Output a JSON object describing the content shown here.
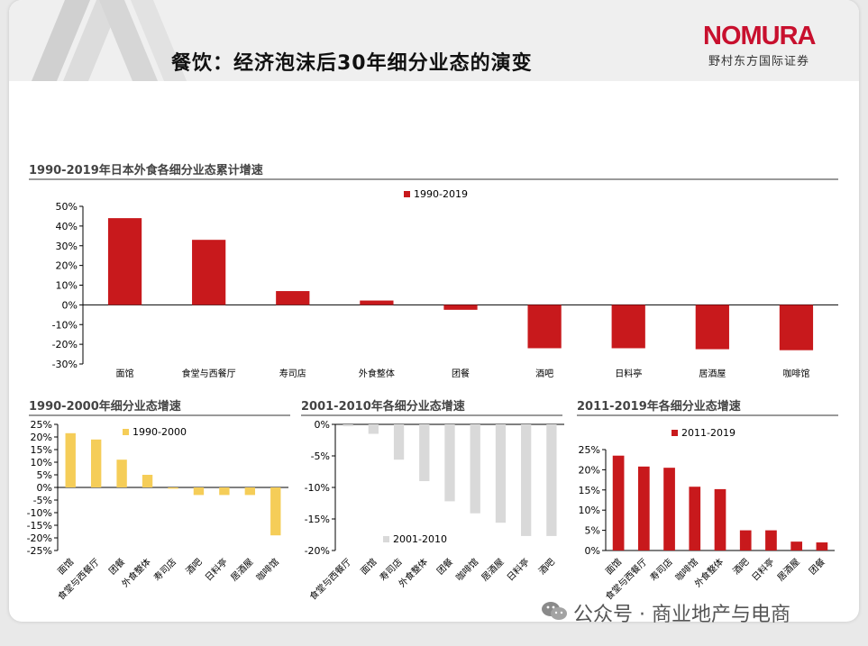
{
  "header": {
    "title": "餐饮：经济泡沫后30年细分业态的演变",
    "brand": "NOMURA",
    "brand_sub": "野村东方国际证券"
  },
  "colors": {
    "red": "#c8191c",
    "yellow": "#f5cd58",
    "grey": "#d9d9d9",
    "brand_red": "#c8102e"
  },
  "sections": {
    "top": "1990-2019年日本外食各细分业态累计增速",
    "bl": "1990-2000年细分业态增速",
    "bc": "2001-2010年各细分业态增速",
    "br": "2011-2019年各细分业态增速"
  },
  "watermark": "公众号 · 商业地产与电商",
  "chart_data": [
    {
      "type": "bar",
      "categories": [
        "面馆",
        "食堂与西餐厅",
        "寿司店",
        "外食整体",
        "团餐",
        "酒吧",
        "日料亭",
        "居酒屋",
        "咖啡馆"
      ],
      "series": [
        {
          "name": "1990-2019",
          "values": [
            44,
            33,
            7,
            2.2,
            -2.5,
            -22,
            -22,
            -22.5,
            -23
          ]
        }
      ],
      "ylim": [
        -30,
        50
      ],
      "yticks": [
        "50%",
        "40%",
        "30%",
        "20%",
        "10%",
        "0%",
        "-10%",
        "-20%",
        "-30%"
      ],
      "legend": "top-center"
    },
    {
      "type": "bar",
      "categories": [
        "面馆",
        "食堂与西餐厅",
        "团餐",
        "外食整体",
        "寿司店",
        "酒吧",
        "日料亭",
        "居酒屋",
        "咖啡馆"
      ],
      "series": [
        {
          "name": "1990-2000",
          "values": [
            21.5,
            19,
            11,
            5,
            -0.5,
            -3,
            -3,
            -3,
            -19
          ]
        }
      ],
      "ylim": [
        -25,
        25
      ],
      "yticks": [
        "25%",
        "20%",
        "15%",
        "10%",
        "5%",
        "0%",
        "-5%",
        "-10%",
        "-15%",
        "-20%",
        "-25%"
      ],
      "legend": "top-right"
    },
    {
      "type": "bar",
      "categories": [
        "食堂与西餐厅",
        "面馆",
        "寿司店",
        "外食整体",
        "团餐",
        "咖啡馆",
        "居酒屋",
        "日料亭",
        "酒吧"
      ],
      "series": [
        {
          "name": "2001-2010",
          "values": [
            -0.3,
            -1.5,
            -5.6,
            -9,
            -12.2,
            -14.1,
            -15.6,
            -17.7,
            -17.7
          ]
        }
      ],
      "ylim": [
        -20,
        0
      ],
      "yticks": [
        "0%",
        "-5%",
        "-10%",
        "-15%",
        "-20%"
      ],
      "legend": "bottom-center"
    },
    {
      "type": "bar",
      "categories": [
        "面馆",
        "食堂与西餐厅",
        "寿司店",
        "咖啡馆",
        "外食整体",
        "酒吧",
        "日料亭",
        "居酒屋",
        "团餐"
      ],
      "series": [
        {
          "name": "2011-2019",
          "values": [
            23.5,
            20.8,
            20.5,
            15.8,
            15.2,
            5,
            5,
            2.2,
            2
          ]
        }
      ],
      "ylim": [
        0,
        25
      ],
      "yticks": [
        "25%",
        "20%",
        "15%",
        "10%",
        "5%",
        "0%"
      ],
      "legend": "top-center"
    }
  ]
}
